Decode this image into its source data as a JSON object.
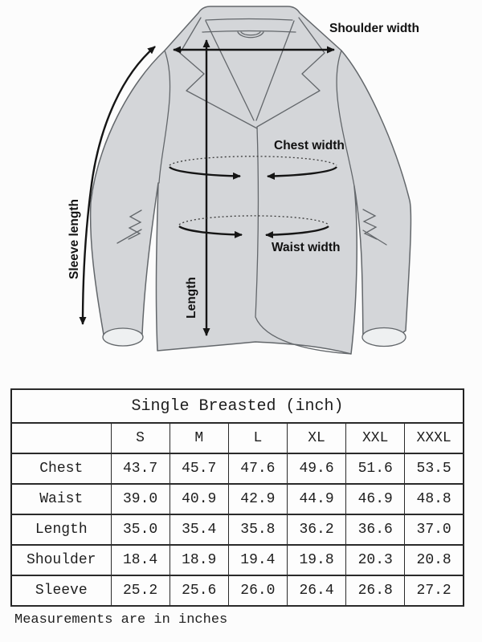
{
  "page": {
    "background": "#fcfcfc"
  },
  "diagram": {
    "labels": {
      "shoulder_width": "Shoulder width",
      "chest_width": "Chest width",
      "waist_width": "Waist width",
      "length": "Length",
      "sleeve_length": "Sleeve length"
    },
    "colors": {
      "jacket_fill": "#d4d6d9",
      "jacket_outline": "#63676b",
      "cuff_fill": "#eef0f1",
      "arrow": "#151515",
      "label_text": "#111111"
    }
  },
  "size_table": {
    "title": "Single Breasted (inch)",
    "corner": "",
    "columns": [
      "S",
      "M",
      "L",
      "XL",
      "XXL",
      "XXXL"
    ],
    "rows": [
      {
        "label": "Chest",
        "values": [
          "43.7",
          "45.7",
          "47.6",
          "49.6",
          "51.6",
          "53.5"
        ]
      },
      {
        "label": "Waist",
        "values": [
          "39.0",
          "40.9",
          "42.9",
          "44.9",
          "46.9",
          "48.8"
        ]
      },
      {
        "label": "Length",
        "values": [
          "35.0",
          "35.4",
          "35.8",
          "36.2",
          "36.6",
          "37.0"
        ]
      },
      {
        "label": "Shoulder",
        "values": [
          "18.4",
          "18.9",
          "19.4",
          "19.8",
          "20.3",
          "20.8"
        ]
      },
      {
        "label": "Sleeve",
        "values": [
          "25.2",
          "25.6",
          "26.0",
          "26.4",
          "26.8",
          "27.2"
        ]
      }
    ]
  },
  "footnote": {
    "text": "Measurements are in inches"
  },
  "chart_data": {
    "type": "table",
    "title": "Single Breasted (inch)",
    "columns": [
      "",
      "S",
      "M",
      "L",
      "XL",
      "XXL",
      "XXXL"
    ],
    "rows": [
      [
        "Chest",
        43.7,
        45.7,
        47.6,
        49.6,
        51.6,
        53.5
      ],
      [
        "Waist",
        39.0,
        40.9,
        42.9,
        44.9,
        46.9,
        48.8
      ],
      [
        "Length",
        35.0,
        35.4,
        35.8,
        36.2,
        36.6,
        37.0
      ],
      [
        "Shoulder",
        18.4,
        18.9,
        19.4,
        19.8,
        20.3,
        20.8
      ],
      [
        "Sleeve",
        25.2,
        25.6,
        26.0,
        26.4,
        26.8,
        27.2
      ]
    ],
    "note": "Measurements are in inches"
  }
}
